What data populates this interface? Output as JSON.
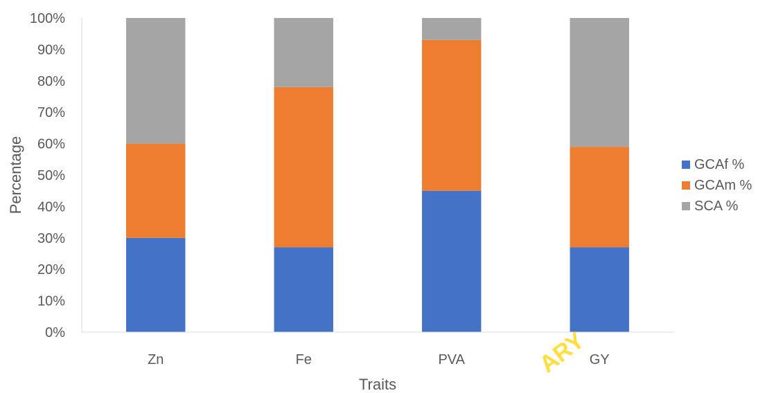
{
  "chart_data": {
    "type": "bar",
    "stacked": true,
    "categories": [
      "Zn",
      "Fe",
      "PVA",
      "GY"
    ],
    "series": [
      {
        "name": "GCAf %",
        "color": "#4472C4",
        "values": [
          30,
          27,
          45,
          27
        ]
      },
      {
        "name": "GCAm %",
        "color": "#ED7D31",
        "values": [
          30,
          51,
          48,
          32
        ]
      },
      {
        "name": "SCA %",
        "color": "#A5A5A5",
        "values": [
          40,
          22,
          7,
          41
        ]
      }
    ],
    "xlabel": "Traits",
    "ylabel": "Percentage",
    "ylim": [
      0,
      100
    ],
    "yticks": [
      "0%",
      "10%",
      "20%",
      "30%",
      "40%",
      "50%",
      "60%",
      "70%",
      "80%",
      "90%",
      "100%"
    ],
    "grid": false,
    "legend": "right"
  },
  "watermark": "ARY"
}
